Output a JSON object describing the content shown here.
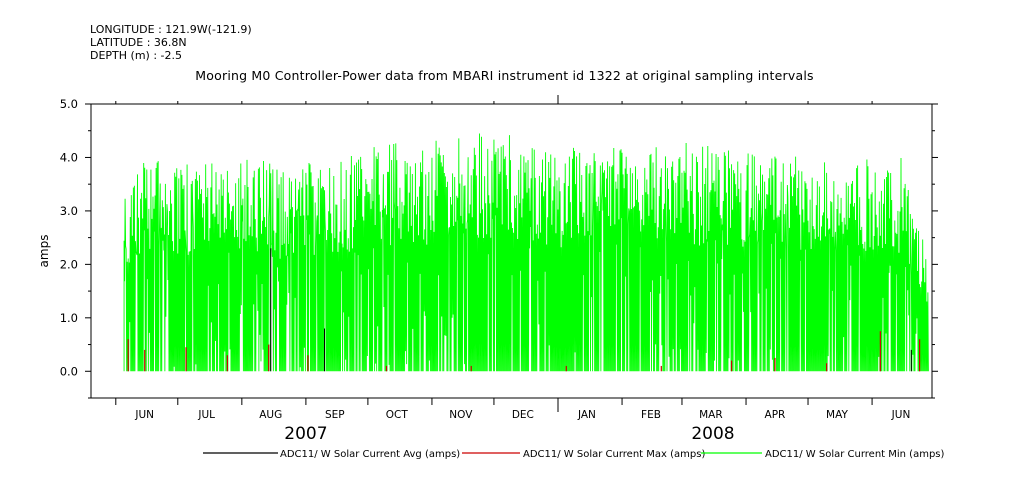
{
  "header": {
    "longitude": "LONGITUDE : 121.9W(-121.9)",
    "latitude": "LATITUDE : 36.8N",
    "depth": "DEPTH (m) : -2.5"
  },
  "chart_data": {
    "type": "line",
    "title": "Mooring M0 Controller-Power data from MBARI instrument id 1322 at original sampling intervals",
    "ylabel": "amps",
    "xlabel": "",
    "ylim": [
      -0.5,
      5.0
    ],
    "yticks": [
      "5.0",
      "4.0",
      "3.0",
      "2.0",
      "1.0",
      "0.0"
    ],
    "xlim": [
      "2007-05-20",
      "2008-06-30"
    ],
    "month_labels": [
      "JUN",
      "JUL",
      "AUG",
      "SEP",
      "OCT",
      "NOV",
      "DEC",
      "JAN",
      "FEB",
      "MAR",
      "APR",
      "MAY",
      "JUN"
    ],
    "year_labels": [
      "2007",
      "2008"
    ],
    "grid": false,
    "legend_position": "bottom",
    "series": [
      {
        "name": "ADC11/ W Solar Current Avg (amps)",
        "color": "#000000",
        "x": [
          "2007-06-08",
          "2007-08-15",
          "2007-09-10",
          "2008-06-20"
        ],
        "y": [
          0.0,
          2.3,
          0.8,
          0.4
        ]
      },
      {
        "name": "ADC11/ W Solar Current Max (amps)",
        "color": "#cc0000",
        "x": [
          "2007-06-07",
          "2007-06-15",
          "2007-07-05",
          "2007-07-25",
          "2007-08-14",
          "2007-09-02",
          "2007-10-10",
          "2007-11-20",
          "2008-01-05",
          "2008-02-20",
          "2008-03-25",
          "2008-04-15",
          "2008-05-10",
          "2008-06-05",
          "2008-06-24"
        ],
        "y": [
          0.6,
          0.4,
          0.45,
          0.3,
          0.5,
          0.3,
          0.1,
          0.1,
          0.1,
          0.1,
          0.2,
          0.25,
          0.15,
          0.75,
          0.6
        ]
      },
      {
        "name": "ADC11/ W Solar Current Min (amps)",
        "color": "#00ff00",
        "envelope_x": [
          "2007-06-05",
          "2007-06-15",
          "2007-07-01",
          "2007-07-20",
          "2007-08-10",
          "2007-08-20",
          "2007-09-01",
          "2007-09-20",
          "2007-10-01",
          "2007-10-20",
          "2007-11-01",
          "2007-11-15",
          "2007-12-01",
          "2007-12-20",
          "2008-01-01",
          "2008-01-20",
          "2008-02-01",
          "2008-02-20",
          "2008-03-01",
          "2008-03-20",
          "2008-04-01",
          "2008-04-20",
          "2008-05-01",
          "2008-05-20",
          "2008-06-01",
          "2008-06-15",
          "2008-06-28"
        ],
        "envelope_ymax": [
          3.5,
          4.0,
          3.9,
          3.9,
          4.0,
          3.8,
          3.9,
          4.0,
          4.2,
          4.3,
          4.3,
          4.4,
          4.5,
          4.3,
          4.2,
          4.3,
          4.4,
          4.3,
          4.3,
          4.2,
          4.1,
          4.1,
          4.0,
          3.9,
          4.0,
          4.0,
          2.1
        ]
      }
    ]
  }
}
